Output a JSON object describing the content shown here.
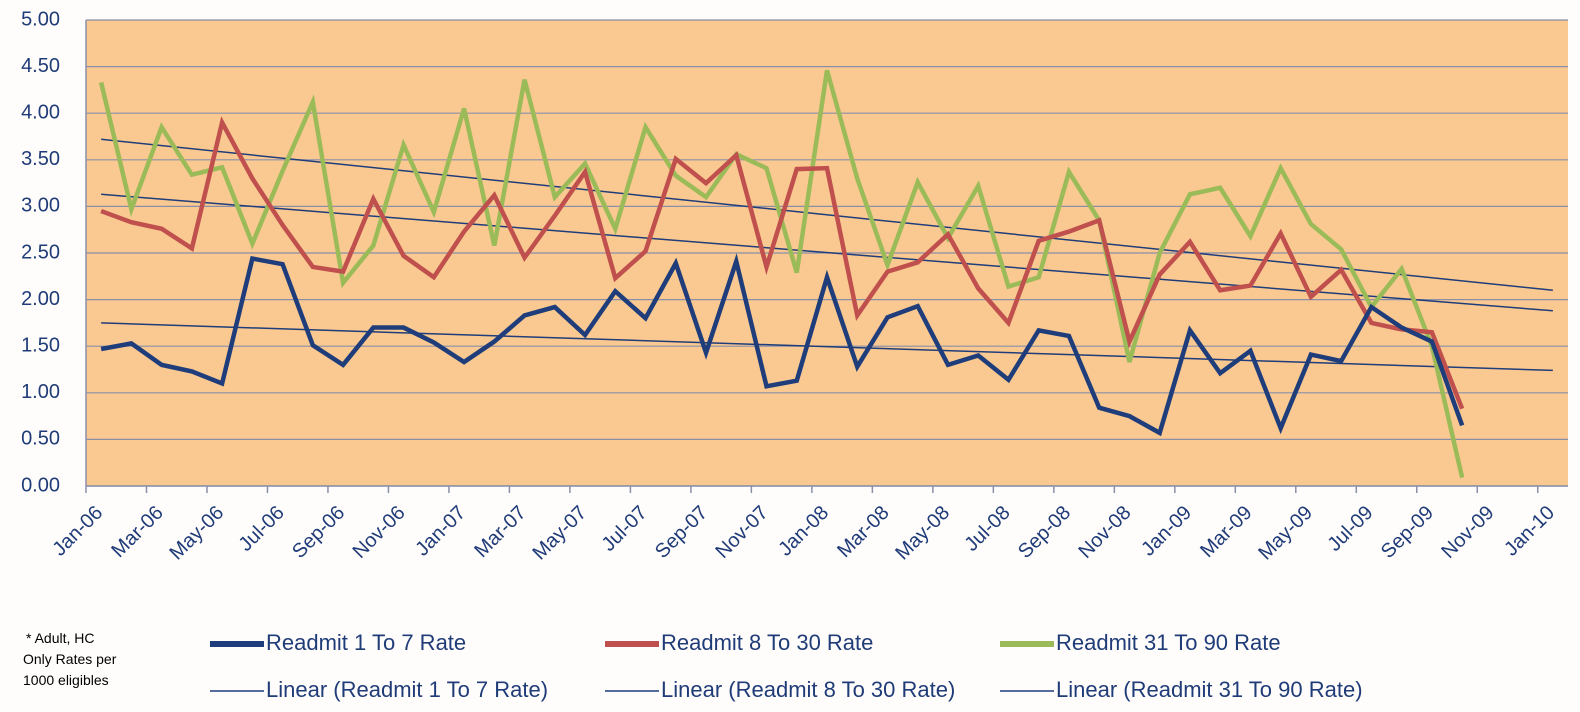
{
  "chart_data": {
    "type": "line",
    "x": [
      "Jan-06",
      "Feb-06",
      "Mar-06",
      "Apr-06",
      "May-06",
      "Jun-06",
      "Jul-06",
      "Aug-06",
      "Sep-06",
      "Oct-06",
      "Nov-06",
      "Dec-06",
      "Jan-07",
      "Feb-07",
      "Mar-07",
      "Apr-07",
      "May-07",
      "Jun-07",
      "Jul-07",
      "Aug-07",
      "Sep-07",
      "Oct-07",
      "Nov-07",
      "Dec-07",
      "Jan-08",
      "Feb-08",
      "Mar-08",
      "Apr-08",
      "May-08",
      "Jun-08",
      "Jul-08",
      "Aug-08",
      "Sep-08",
      "Oct-08",
      "Nov-08",
      "Dec-08",
      "Jan-09",
      "Feb-09",
      "Mar-09",
      "Apr-09",
      "May-09",
      "Jun-09",
      "Jul-09",
      "Aug-09",
      "Sep-09",
      "Oct-09"
    ],
    "series": [
      {
        "name": "Readmit 1 To 7 Rate",
        "color": "#1f3d7a",
        "values": [
          1.47,
          1.53,
          1.3,
          1.23,
          1.1,
          2.44,
          2.38,
          1.51,
          1.3,
          1.7,
          1.7,
          1.54,
          1.33,
          1.55,
          1.83,
          1.92,
          1.62,
          2.09,
          1.8,
          2.39,
          1.43,
          2.41,
          1.07,
          1.13,
          2.24,
          1.28,
          1.81,
          1.93,
          1.3,
          1.4,
          1.14,
          1.67,
          1.61,
          0.84,
          0.75,
          0.57,
          1.67,
          1.21,
          1.45,
          0.62,
          1.41,
          1.34,
          1.92,
          1.7,
          1.55,
          0.65
        ]
      },
      {
        "name": "Readmit 8 To 30 Rate",
        "color": "#c0504d",
        "values": [
          2.95,
          2.83,
          2.76,
          2.55,
          3.9,
          3.3,
          2.8,
          2.35,
          2.3,
          3.08,
          2.47,
          2.24,
          2.73,
          3.12,
          2.45,
          2.9,
          3.37,
          2.23,
          2.52,
          3.51,
          3.25,
          3.55,
          2.35,
          3.4,
          3.41,
          1.83,
          2.3,
          2.4,
          2.7,
          2.12,
          1.75,
          2.63,
          2.73,
          2.85,
          1.55,
          2.27,
          2.62,
          2.1,
          2.15,
          2.71,
          2.03,
          2.32,
          1.75,
          1.68,
          1.65,
          0.83
        ]
      },
      {
        "name": "Readmit 31 To 90 Rate",
        "color": "#9bbb59",
        "values": [
          4.33,
          2.97,
          3.85,
          3.34,
          3.42,
          2.6,
          3.38,
          4.12,
          2.18,
          2.58,
          3.66,
          2.94,
          4.05,
          2.58,
          4.36,
          3.1,
          3.46,
          2.76,
          3.85,
          3.33,
          3.1,
          3.56,
          3.41,
          2.29,
          4.46,
          3.3,
          2.37,
          3.26,
          2.66,
          3.22,
          2.14,
          2.24,
          3.37,
          2.85,
          1.33,
          2.5,
          3.13,
          3.2,
          2.68,
          3.41,
          2.81,
          2.54,
          1.92,
          2.33,
          1.5,
          0.09
        ]
      }
    ],
    "trendlines": [
      {
        "name": "Linear (Readmit 1 To 7 Rate)",
        "color": "#1f3d7a",
        "x": [
          "Jan-06",
          "Jan-10"
        ],
        "values": [
          1.75,
          1.24
        ]
      },
      {
        "name": "Linear (Readmit 8 To 30 Rate)",
        "color": "#1f3d7a",
        "x": [
          "Jan-06",
          "Jan-10"
        ],
        "values": [
          3.13,
          1.88
        ]
      },
      {
        "name": "Linear (Readmit 31 To 90 Rate)",
        "color": "#1f3d7a",
        "x": [
          "Jan-06",
          "Jan-10"
        ],
        "values": [
          3.72,
          2.1
        ]
      }
    ],
    "xticks": [
      "Jan-06",
      "Mar-06",
      "May-06",
      "Jul-06",
      "Sep-06",
      "Nov-06",
      "Jan-07",
      "Mar-07",
      "May-07",
      "Jul-07",
      "Sep-07",
      "Nov-07",
      "Jan-08",
      "Mar-08",
      "May-08",
      "Jul-08",
      "Sep-08",
      "Nov-08",
      "Jan-09",
      "Mar-09",
      "May-09",
      "Jul-09",
      "Sep-09",
      "Nov-09",
      "Jan-10"
    ],
    "ylim": [
      0,
      5
    ],
    "yticks": [
      {
        "value": 0,
        "label": "0.00"
      },
      {
        "value": 0.5,
        "label": "0.50"
      },
      {
        "value": 1,
        "label": "1.00"
      },
      {
        "value": 1.5,
        "label": "1.50"
      },
      {
        "value": 2,
        "label": "2.00"
      },
      {
        "value": 2.5,
        "label": "2.50"
      },
      {
        "value": 3,
        "label": "3.00"
      },
      {
        "value": 3.5,
        "label": "3.50"
      },
      {
        "value": 4,
        "label": "4.00"
      },
      {
        "value": 4.5,
        "label": "4.50"
      },
      {
        "value": 5,
        "label": "5.00"
      }
    ],
    "grid": true,
    "plot_background": "#fac991",
    "note": [
      "* Adult, HC",
      "Only Rates per",
      "1000 eligibles"
    ]
  }
}
